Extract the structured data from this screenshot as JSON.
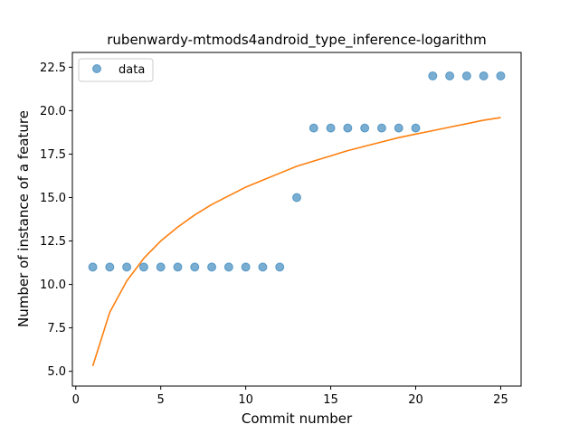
{
  "chart_data": {
    "type": "scatter",
    "title": "rubenwardy-mtmods4android_type_inference-logarithm",
    "xlabel": "Commit number",
    "ylabel": "Number of instance of a feature",
    "xlim": [
      -0.2,
      26.2
    ],
    "ylim": [
      4.15,
      23.35
    ],
    "xticks": [
      0,
      5,
      10,
      15,
      20,
      25
    ],
    "yticks": [
      5.0,
      7.5,
      10.0,
      12.5,
      15.0,
      17.5,
      20.0,
      22.5
    ],
    "ytick_labels": [
      "5.0",
      "7.5",
      "10.0",
      "12.5",
      "15.0",
      "17.5",
      "20.0",
      "22.5"
    ],
    "xtick_labels": [
      "0",
      "5",
      "10",
      "15",
      "20",
      "25"
    ],
    "grid": false,
    "legend_position": "top-left",
    "series": [
      {
        "name": "data",
        "kind": "scatter",
        "color": "#1f77b4",
        "x": [
          1,
          2,
          3,
          4,
          5,
          6,
          7,
          8,
          9,
          10,
          11,
          12,
          13,
          14,
          15,
          16,
          17,
          18,
          19,
          20,
          21,
          22,
          23,
          24,
          25
        ],
        "y": [
          11,
          11,
          11,
          11,
          11,
          11,
          11,
          11,
          11,
          11,
          11,
          11,
          15,
          19,
          19,
          19,
          19,
          19,
          19,
          19,
          22,
          22,
          22,
          22,
          22
        ]
      },
      {
        "kind": "line",
        "color": "#ff7f0e",
        "x": [
          1,
          2,
          3,
          4,
          5,
          6,
          7,
          8,
          9,
          10,
          11,
          12,
          13,
          14,
          15,
          16,
          17,
          18,
          19,
          20,
          21,
          22,
          23,
          24,
          25
        ],
        "y": [
          5.3,
          8.4,
          10.2,
          11.5,
          12.5,
          13.3,
          14.0,
          14.6,
          15.1,
          15.6,
          16.0,
          16.4,
          16.8,
          17.1,
          17.4,
          17.7,
          17.95,
          18.2,
          18.45,
          18.65,
          18.85,
          19.05,
          19.25,
          19.45,
          19.6
        ]
      }
    ]
  }
}
